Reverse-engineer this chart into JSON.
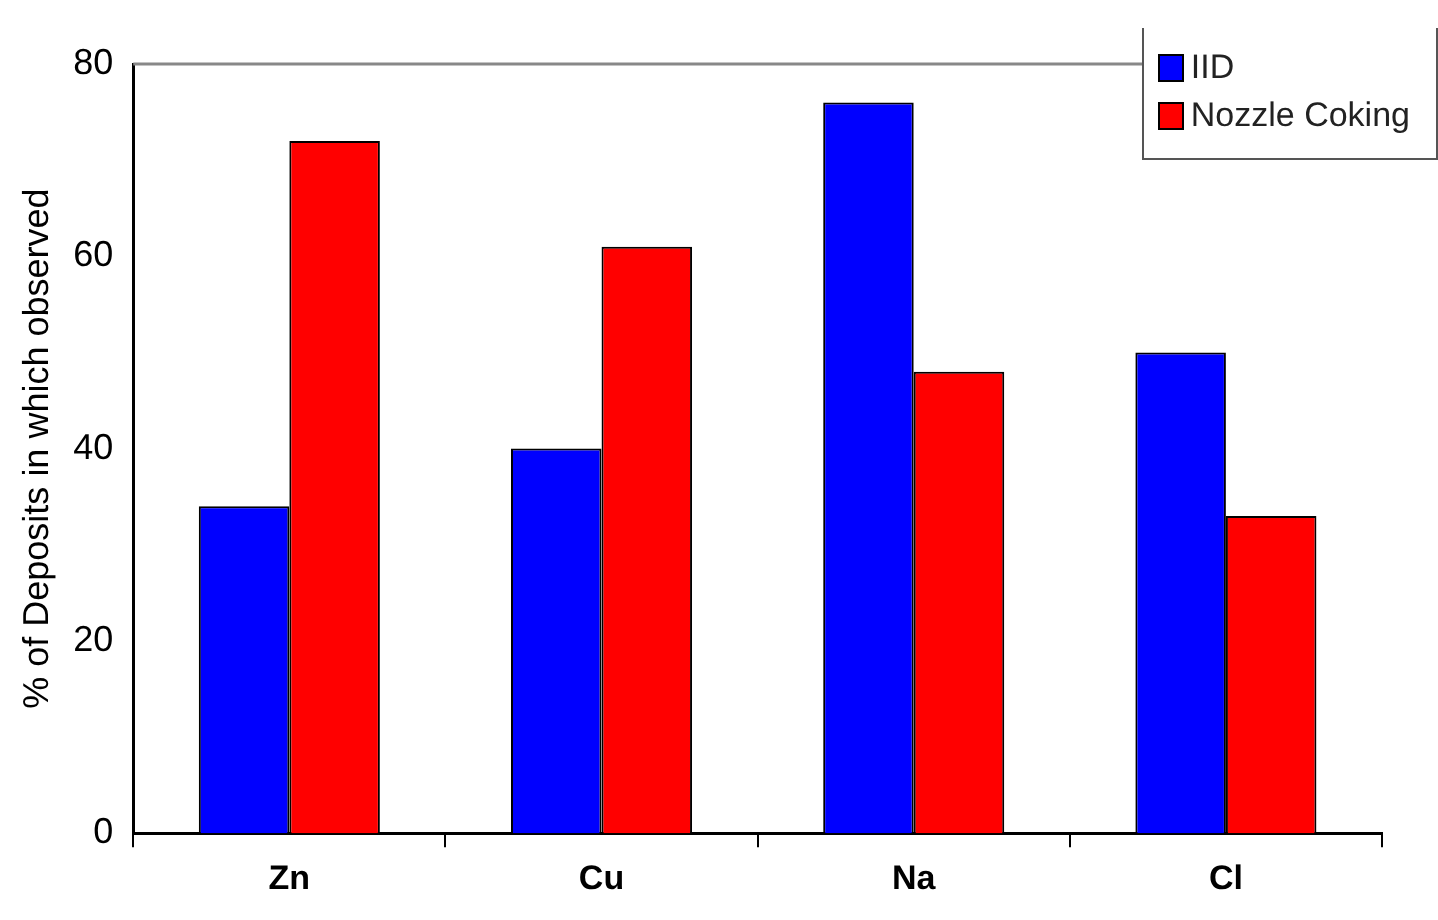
{
  "chart_data": {
    "type": "bar",
    "ylabel": "% of Deposits in which observed",
    "categories": [
      "Zn",
      "Cu",
      "Na",
      "Cl"
    ],
    "series": [
      {
        "name": "IID",
        "color": "#0000ff",
        "values": [
          34,
          40,
          76,
          50
        ]
      },
      {
        "name": "Nozzle Coking",
        "color": "#ff0000",
        "values": [
          72,
          61,
          48,
          33
        ]
      }
    ],
    "ylim": [
      0,
      80
    ],
    "yticks": [
      0,
      20,
      40,
      60,
      80
    ],
    "grid": false,
    "legend": "top right"
  }
}
